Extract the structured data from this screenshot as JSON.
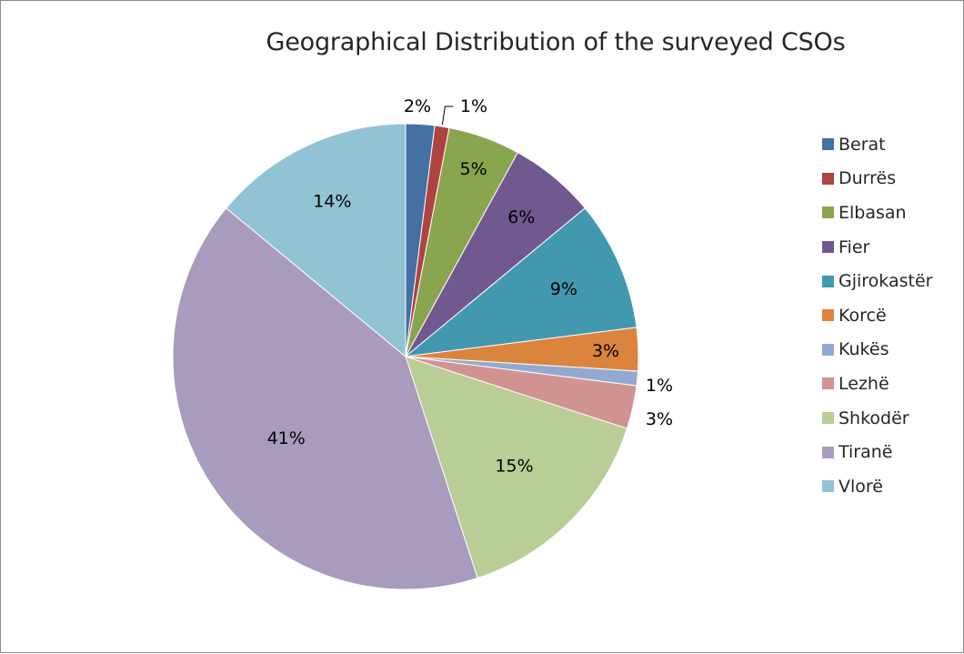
{
  "chart_data": {
    "type": "pie",
    "title": "Geographical Distribution of the surveyed CSOs",
    "legend_position": "right",
    "categories": [
      "Berat",
      "Durrës",
      "Elbasan",
      "Fier",
      "Gjirokastër",
      "Korcë",
      "Kukës",
      "Lezhë",
      "Shkodër",
      "Tiranë",
      "Vlorë"
    ],
    "values": [
      2,
      1,
      5,
      6,
      9,
      3,
      1,
      3,
      15,
      41,
      14
    ],
    "labels": [
      "2%",
      "1%",
      "5%",
      "6%",
      "9%",
      "3%",
      "1%",
      "3%",
      "15%",
      "41%",
      "14%"
    ],
    "colors": [
      "#4470A4",
      "#AD4441",
      "#89A54E",
      "#71588F",
      "#4298AF",
      "#DB843D",
      "#93A9CF",
      "#D19392",
      "#B9CD96",
      "#A99BBD",
      "#92C3D4"
    ]
  }
}
